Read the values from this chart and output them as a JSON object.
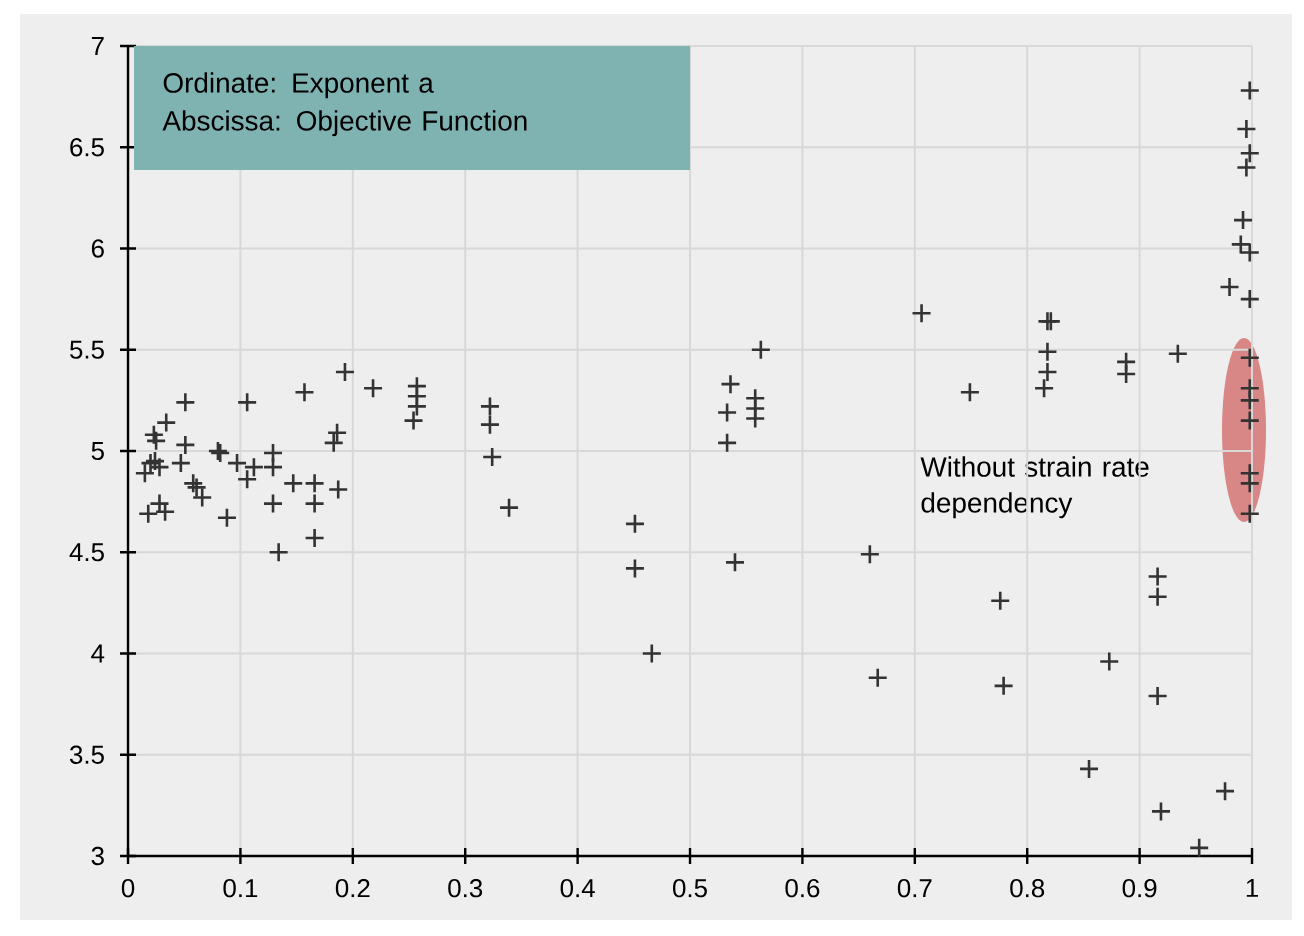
{
  "chart_data": {
    "type": "scatter",
    "x": [
      0.018,
      0.028,
      0.033,
      0.015,
      0.02,
      0.024,
      0.028,
      0.023,
      0.025,
      0.034,
      0.051,
      0.051,
      0.047,
      0.058,
      0.061,
      0.066,
      0.08,
      0.082,
      0.088,
      0.097,
      0.106,
      0.106,
      0.112,
      0.129,
      0.129,
      0.129,
      0.134,
      0.147,
      0.157,
      0.166,
      0.166,
      0.166,
      0.183,
      0.186,
      0.187,
      0.193,
      0.218,
      0.257,
      0.257,
      0.257,
      0.254,
      0.322,
      0.322,
      0.324,
      0.339,
      0.451,
      0.451,
      0.466,
      0.563,
      0.536,
      0.533,
      0.558,
      0.558,
      0.558,
      0.533,
      0.54,
      0.66,
      0.667,
      0.706,
      0.749,
      0.776,
      0.779,
      0.818,
      0.821,
      0.818,
      0.818,
      0.815,
      0.855,
      0.873,
      0.888,
      0.888,
      0.916,
      0.916,
      0.916,
      0.919,
      0.934,
      0.953,
      0.976,
      0.98,
      0.99,
      0.992,
      0.995,
      0.995,
      0.998,
      0.998,
      0.998,
      0.998,
      0.998,
      0.998,
      0.998,
      0.998,
      0.998,
      0.998,
      0.998
    ],
    "series": [
      {
        "color": "#333333",
        "values": [
          4.69,
          4.74,
          4.7,
          4.89,
          4.94,
          4.95,
          4.92,
          5.08,
          5.05,
          5.14,
          5.24,
          5.03,
          4.94,
          4.84,
          4.82,
          4.77,
          5.0,
          4.99,
          4.67,
          4.94,
          5.24,
          4.86,
          4.92,
          4.99,
          4.92,
          4.74,
          4.5,
          4.84,
          5.29,
          4.84,
          4.74,
          4.57,
          5.04,
          5.09,
          4.81,
          5.39,
          5.31,
          5.32,
          5.27,
          5.22,
          5.15,
          5.22,
          5.13,
          4.97,
          4.72,
          4.64,
          4.42,
          4.0,
          5.5,
          5.33,
          5.19,
          5.26,
          5.21,
          5.16,
          5.04,
          4.45,
          4.49,
          3.88,
          5.68,
          5.29,
          4.26,
          3.84,
          5.64,
          5.64,
          5.49,
          5.39,
          5.31,
          3.43,
          3.96,
          5.44,
          5.38,
          4.38,
          4.28,
          3.79,
          3.22,
          5.48,
          3.04,
          3.32,
          5.81,
          6.02,
          6.14,
          6.4,
          6.59,
          6.78,
          6.47,
          5.98,
          5.75,
          5.46,
          5.31,
          5.25,
          5.15,
          4.89,
          4.84,
          4.69
        ]
      }
    ],
    "xlim": [
      0,
      1
    ],
    "xticks": [
      0,
      0.1,
      0.2,
      0.3,
      0.4,
      0.5,
      0.6,
      0.7,
      0.8,
      0.9,
      1
    ],
    "ylim": [
      3,
      7
    ],
    "yticks": [
      3,
      3.5,
      4,
      4.5,
      5,
      5.5,
      6,
      6.5,
      7
    ],
    "grid": true,
    "marker": "cross",
    "annotations": [
      "Ordinate: Exponent a",
      "Abscissa: Objective Function",
      "Without strain rate dependency"
    ]
  }
}
